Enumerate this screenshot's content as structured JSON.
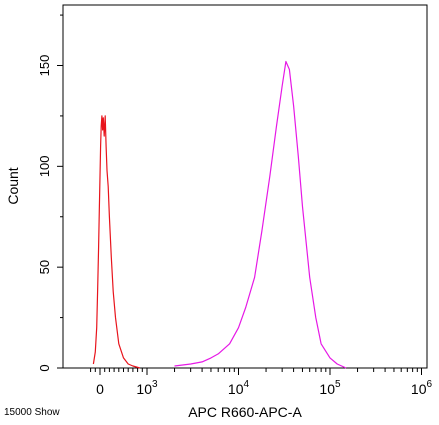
{
  "chart_data": {
    "type": "line",
    "title": "",
    "xlabel": "APC R660-APC-A",
    "ylabel": "Count",
    "x_scale": "biexponential",
    "x_ticks": [
      {
        "value": 0,
        "base": "0",
        "exp": ""
      },
      {
        "value": 1000,
        "base": "10",
        "exp": "3"
      },
      {
        "value": 10000,
        "base": "10",
        "exp": "4"
      },
      {
        "value": 100000,
        "base": "10",
        "exp": "5"
      },
      {
        "value": 1000000,
        "base": "10",
        "exp": "6"
      }
    ],
    "y_ticks": [
      "0",
      "50",
      "100",
      "150"
    ],
    "ylim": [
      0,
      180
    ],
    "grid": false,
    "series": [
      {
        "color": "#e8141c",
        "x": [
          -140,
          -100,
          -70,
          -50,
          -30,
          -15,
          0,
          12,
          25,
          40,
          55,
          70,
          90,
          110,
          130,
          150,
          175,
          200,
          240,
          280,
          330,
          400,
          500,
          600,
          700,
          850
        ],
        "y": [
          2,
          8,
          20,
          40,
          60,
          78,
          95,
          110,
          120,
          125,
          118,
          124,
          115,
          125,
          110,
          98,
          90,
          75,
          55,
          38,
          25,
          12,
          5,
          2,
          1,
          0
        ]
      },
      {
        "color": "#e619e6",
        "x": [
          2000,
          3000,
          4000,
          5000,
          6000,
          8000,
          10000,
          12000,
          15000,
          18000,
          22000,
          26000,
          30000,
          33000,
          36000,
          40000,
          45000,
          50000,
          60000,
          70000,
          80000,
          100000,
          120000,
          150000
        ],
        "y": [
          1,
          2,
          3,
          5,
          7,
          12,
          20,
          30,
          45,
          68,
          95,
          120,
          140,
          152,
          148,
          130,
          105,
          80,
          45,
          25,
          12,
          5,
          2,
          0
        ]
      }
    ]
  },
  "footer_text": "15000 Show"
}
